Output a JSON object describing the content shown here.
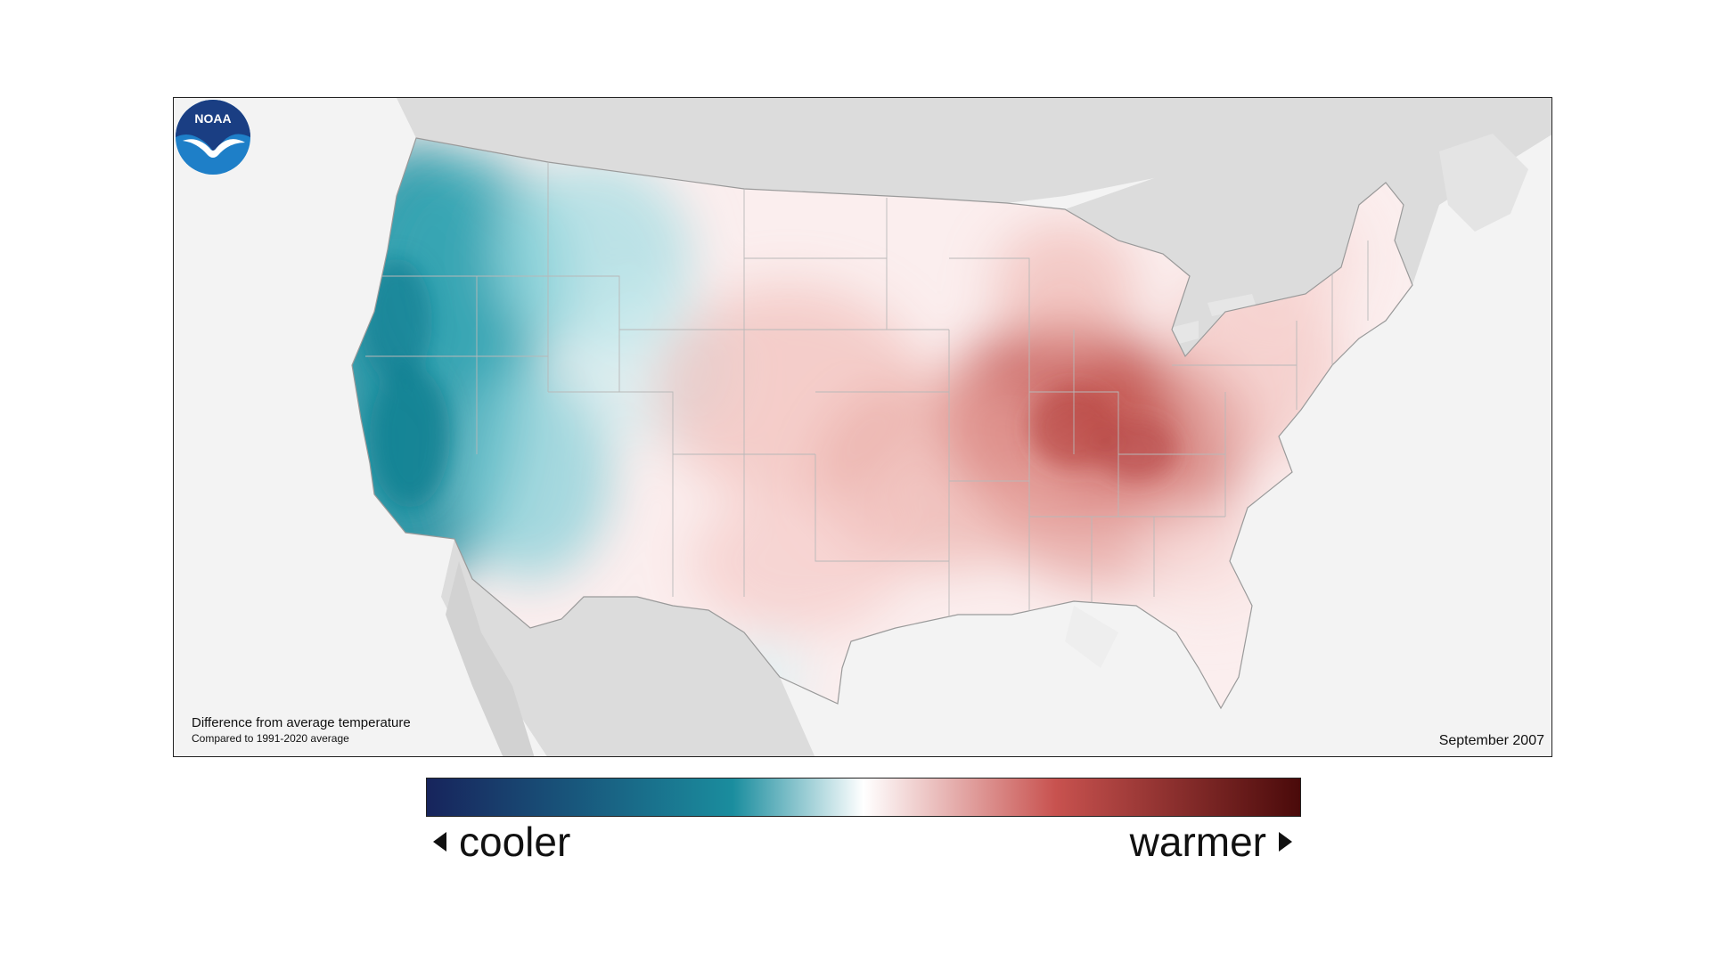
{
  "caption": {
    "main": "Difference from average temperature",
    "sub": "Compared to 1991-2020 average"
  },
  "period": "September 2007",
  "logo": {
    "text": "NOAA",
    "icon": "noaa-logo-icon",
    "colors": {
      "top": "#1a3e83",
      "bottom": "#1e7fc8"
    }
  },
  "legend": {
    "cool_label": "cooler",
    "warm_label": "warmer",
    "colors": {
      "coolest": "#17245c",
      "cool": "#1a8d9e",
      "neutral": "#ffffff",
      "warm": "#c8524f",
      "warmest": "#4a0a0a"
    }
  },
  "map": {
    "region": "contiguous-united-states",
    "pattern": {
      "west_coast": "cooler",
      "northwest": "cooler",
      "great_plains": "slightly warmer",
      "ohio_valley": "warmer",
      "southeast": "slightly warmer",
      "northeast": "slightly warmer"
    }
  }
}
